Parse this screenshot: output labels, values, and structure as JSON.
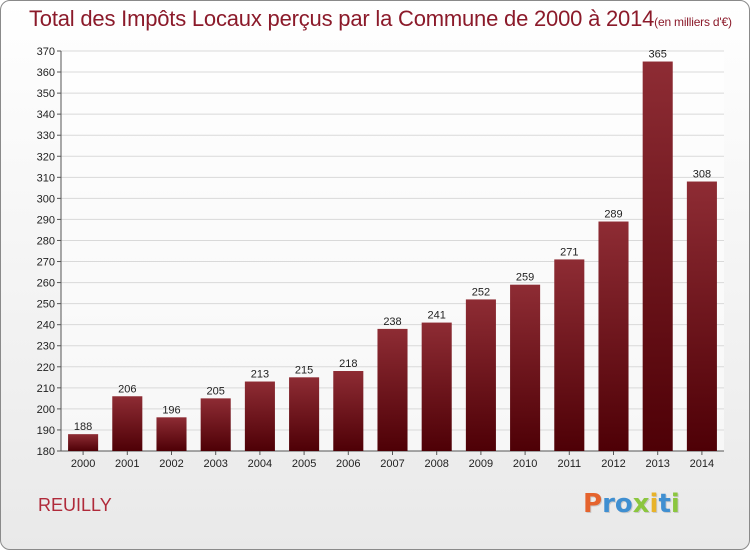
{
  "title": "Total des Impôts Locaux perçus par la Commune de 2000 à 2014",
  "title_unit": "(en milliers d'€)",
  "commune": "REUILLY",
  "logo": {
    "letters": [
      "P",
      "r",
      "o",
      "x",
      "i",
      "t",
      "i"
    ],
    "colors": [
      "#e5632d",
      "#3f8fd1",
      "#3f8fd1",
      "#8bc63f",
      "#e8b32a",
      "#3f8fd1",
      "#8bc63f"
    ]
  },
  "colors": {
    "bar_top": "#8e2c34",
    "bar_bottom": "#4e0006",
    "title": "#8b1a2a",
    "grid": "#d9d9d9"
  },
  "chart_data": {
    "type": "bar",
    "categories": [
      "2000",
      "2001",
      "2002",
      "2003",
      "2004",
      "2005",
      "2006",
      "2007",
      "2008",
      "2009",
      "2010",
      "2011",
      "2012",
      "2013",
      "2014"
    ],
    "values": [
      188,
      206,
      196,
      205,
      213,
      215,
      218,
      238,
      241,
      252,
      259,
      271,
      289,
      365,
      308
    ],
    "ylim": [
      180,
      370
    ],
    "ytick_step": 10,
    "grid": true
  }
}
